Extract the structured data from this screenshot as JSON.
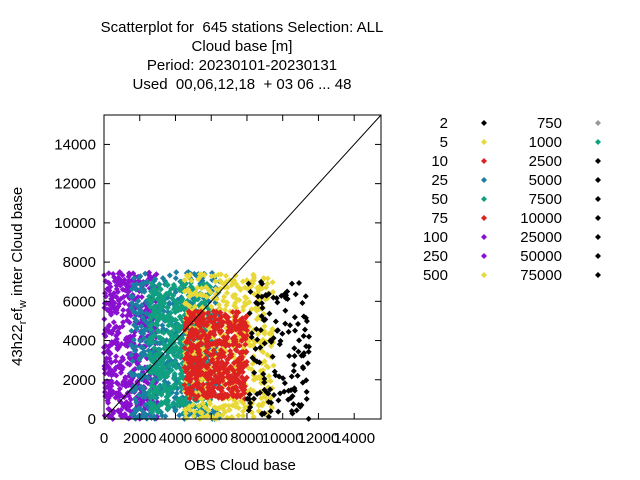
{
  "chart_data": {
    "type": "scatter",
    "title": [
      "Scatterplot for  645 stations Selection: ALL",
      "Cloud base [m]",
      "Period: 20230101-20230131",
      "Used  00,06,12,18  + 03 06 ... 48"
    ],
    "xlabel": "OBS Cloud base",
    "ylabel": "43h22_ref_w inter Cloud base",
    "xlim": [
      0,
      15500
    ],
    "ylim": [
      0,
      15500
    ],
    "xticks": [
      "0",
      "2000",
      "4000",
      "6000",
      "8000",
      "10000",
      "12000",
      "14000"
    ],
    "yticks": [
      "0",
      "2000",
      "4000",
      "6000",
      "8000",
      "10000",
      "12000",
      "14000"
    ],
    "xtick_values": [
      0,
      2000,
      4000,
      6000,
      8000,
      10000,
      12000,
      14000
    ],
    "ytick_values": [
      0,
      2000,
      4000,
      6000,
      8000,
      10000,
      12000,
      14000
    ],
    "diagonal": true,
    "legend_position": "right",
    "legend": [
      {
        "label": "2",
        "color": "#000000"
      },
      {
        "label": "5",
        "color": "#e8d838"
      },
      {
        "label": "10",
        "color": "#dd2222"
      },
      {
        "label": "25",
        "color": "#1a7fa0"
      },
      {
        "label": "50",
        "color": "#10a080"
      },
      {
        "label": "75",
        "color": "#dd2222"
      },
      {
        "label": "100",
        "color": "#8a10d0"
      },
      {
        "label": "250",
        "color": "#8a10d0"
      },
      {
        "label": "500",
        "color": "#e8d838"
      },
      {
        "label": "750",
        "color": "#999999"
      },
      {
        "label": "1000",
        "color": "#10a080"
      },
      {
        "label": "2500",
        "color": "#000000"
      },
      {
        "label": "5000",
        "color": "#000000"
      },
      {
        "label": "7500",
        "color": "#000000"
      },
      {
        "label": "10000",
        "color": "#000000"
      },
      {
        "label": "25000",
        "color": "#000000"
      },
      {
        "label": "50000",
        "color": "#000000"
      },
      {
        "label": "75000",
        "color": "#000000"
      }
    ],
    "regions": [
      {
        "color": "#8a10d0",
        "x": [
          0,
          3000
        ],
        "y": [
          0,
          7500
        ]
      },
      {
        "color": "#1a7fa0",
        "x": [
          1500,
          6500
        ],
        "y": [
          0,
          7500
        ]
      },
      {
        "color": "#10a080",
        "x": [
          2500,
          6000
        ],
        "y": [
          300,
          7000
        ]
      },
      {
        "color": "#e8d838",
        "x": [
          4500,
          9500
        ],
        "y": [
          0,
          7400
        ]
      },
      {
        "color": "#dd2222",
        "x": [
          4500,
          8000
        ],
        "y": [
          1000,
          5500
        ]
      },
      {
        "color": "#000000",
        "x": [
          8000,
          11500
        ],
        "y": [
          0,
          7000
        ]
      }
    ]
  }
}
